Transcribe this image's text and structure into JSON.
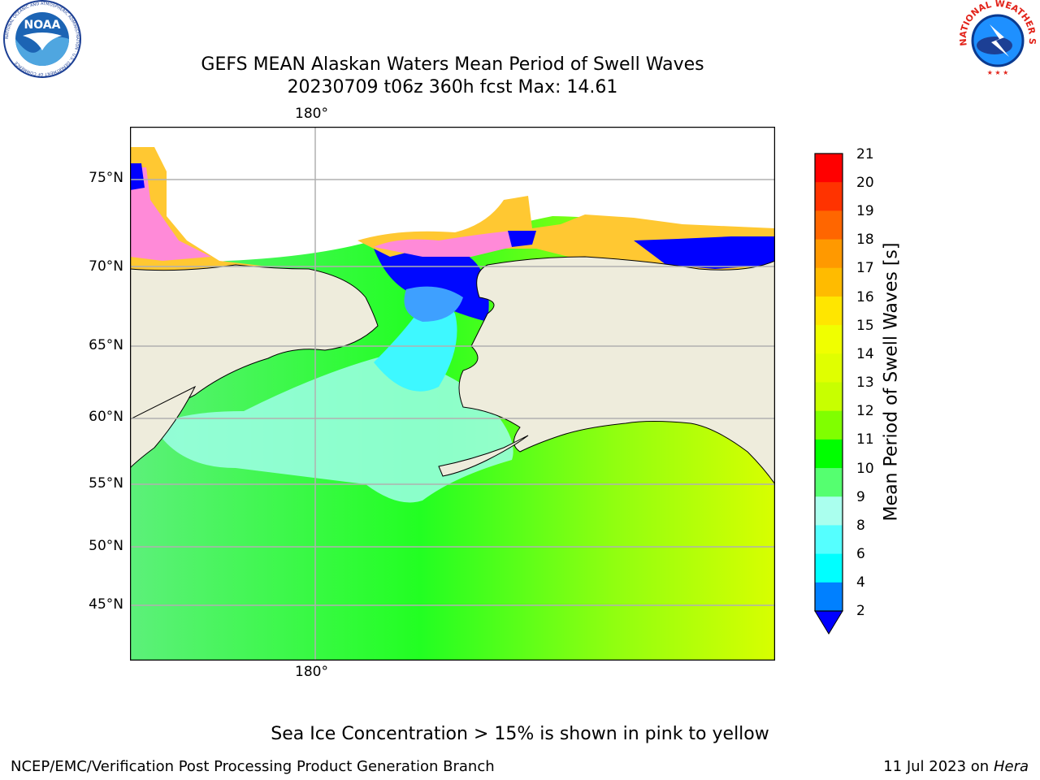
{
  "header": {
    "title_line1": "GEFS MEAN Alaskan Waters Mean Period of Swell Waves",
    "title_line2": "20230709 t06z 360h fcst   Max: 14.61"
  },
  "logos": {
    "noaa_text": "NOAA",
    "noaa_ring_text": "NATIONAL OCEANIC AND ATMOSPHERIC ADMINISTRATION · U.S. DEPARTMENT OF COMMERCE",
    "nws_ring_text": "NATIONAL WEATHER SERVICE"
  },
  "map": {
    "lon_label_top": "180°",
    "lon_label_bottom": "180°",
    "lat_labels": [
      "75°N",
      "70°N",
      "65°N",
      "60°N",
      "55°N",
      "50°N",
      "45°N"
    ],
    "colors": {
      "land": "#eeecdc",
      "ice_edge": "#ffc832",
      "ice_mid": "#ff8ad8",
      "grid": "#b0b0b0"
    }
  },
  "colorbar": {
    "label": "Mean Period of Swell Waves [s]",
    "ticks": [
      "21",
      "20",
      "19",
      "18",
      "17",
      "16",
      "15",
      "14",
      "13",
      "12",
      "11",
      "10",
      "9",
      "8",
      "6",
      "4",
      "2"
    ],
    "colors": [
      "#ff0000",
      "#ff3300",
      "#ff6600",
      "#ff9900",
      "#ffbb00",
      "#ffe600",
      "#f0ff00",
      "#e0ff00",
      "#c8ff00",
      "#80ff00",
      "#00ff00",
      "#55ff70",
      "#aaffee",
      "#55ffff",
      "#00ffff",
      "#0080ff",
      "#0000ff"
    ]
  },
  "note": "Sea Ice Concentration > 15% is shown in pink to yellow",
  "footer": {
    "left": "NCEP/EMC/Verification Post Processing Product Generation Branch",
    "date": "11 Jul 2023 on ",
    "host": "Hera"
  }
}
